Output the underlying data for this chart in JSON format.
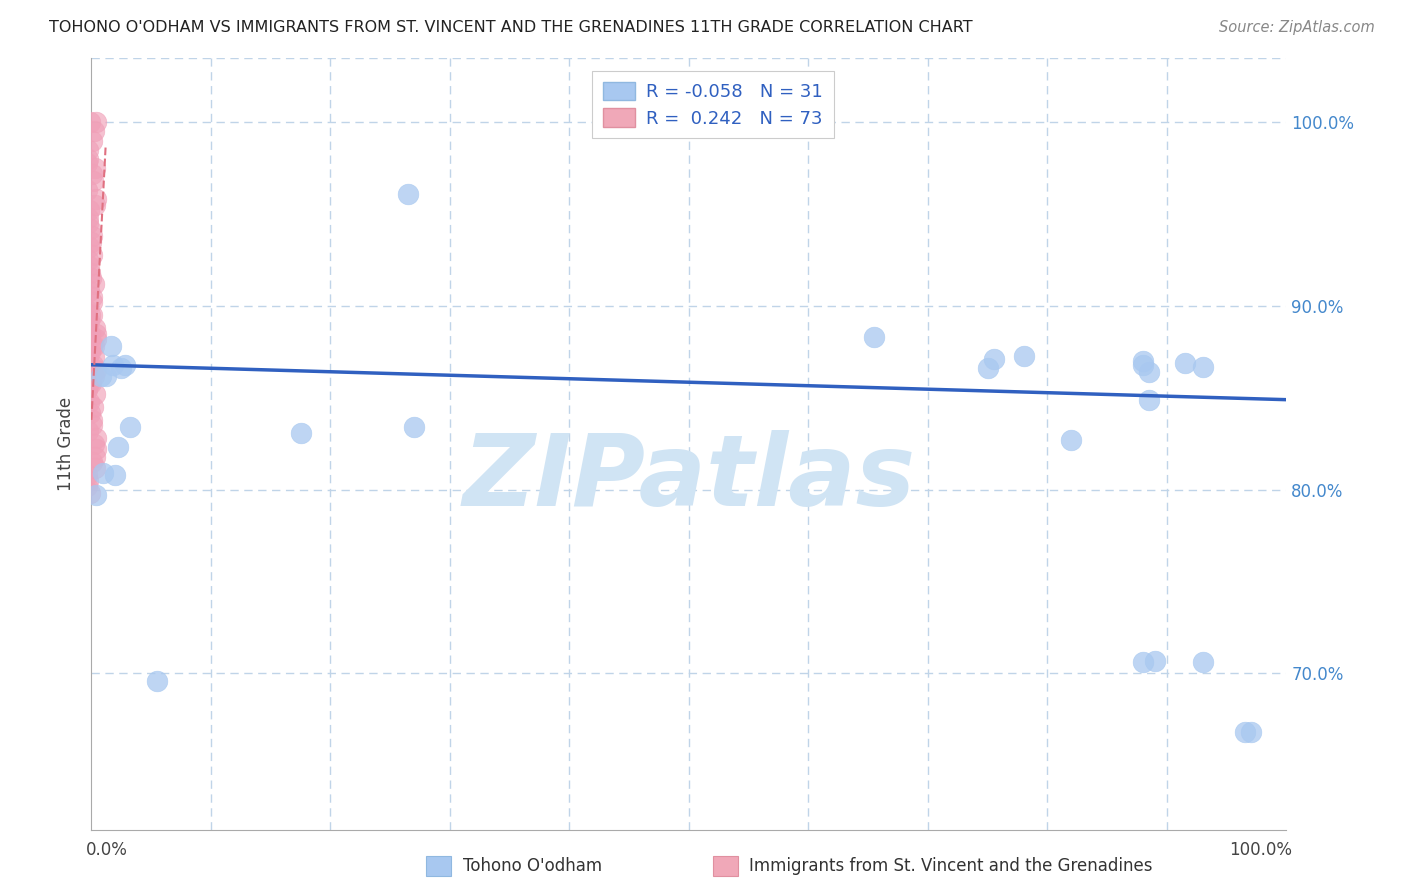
{
  "title": "TOHONO O'ODHAM VS IMMIGRANTS FROM ST. VINCENT AND THE GRENADINES 11TH GRADE CORRELATION CHART",
  "source": "Source: ZipAtlas.com",
  "ylabel": "11th Grade",
  "xlim": [
    0.0,
    1.0
  ],
  "ylim": [
    0.615,
    1.035
  ],
  "yticks": [
    0.7,
    0.8,
    0.9,
    1.0
  ],
  "ytick_labels": [
    "70.0%",
    "80.0%",
    "90.0%",
    "100.0%"
  ],
  "xtick_positions": [
    0.0,
    0.1,
    0.2,
    0.3,
    0.4,
    0.5,
    0.6,
    0.7,
    0.8,
    0.9,
    1.0
  ],
  "watermark": "ZIPatlas",
  "blue_R": "-0.058",
  "blue_N": "31",
  "pink_R": "0.242",
  "pink_N": "73",
  "blue_scatter_x": [
    0.004,
    0.008,
    0.01,
    0.012,
    0.016,
    0.018,
    0.02,
    0.022,
    0.025,
    0.028,
    0.032,
    0.055,
    0.175,
    0.265,
    0.27,
    0.75,
    0.655,
    0.88,
    0.885,
    0.89,
    0.915,
    0.93,
    0.965,
    0.885,
    0.88,
    0.755,
    0.78,
    0.82,
    0.88,
    0.93,
    0.97
  ],
  "blue_scatter_y": [
    0.797,
    0.862,
    0.809,
    0.862,
    0.878,
    0.868,
    0.808,
    0.823,
    0.866,
    0.868,
    0.834,
    0.696,
    0.831,
    0.961,
    0.834,
    0.866,
    0.883,
    0.868,
    0.864,
    0.707,
    0.869,
    0.867,
    0.668,
    0.849,
    0.87,
    0.871,
    0.873,
    0.827,
    0.706,
    0.706,
    0.668
  ],
  "pink_scatter_x": [
    0.0,
    0.0,
    0.0,
    0.0,
    0.0,
    0.0,
    0.0,
    0.0,
    0.0,
    0.0,
    0.0,
    0.0,
    0.0,
    0.0,
    0.0,
    0.0,
    0.0,
    0.0,
    0.0,
    0.0,
    0.0,
    0.0,
    0.0,
    0.0,
    0.0,
    0.0,
    0.0,
    0.0,
    0.0,
    0.0,
    0.0,
    0.0,
    0.0,
    0.0,
    0.0,
    0.0,
    0.0,
    0.0,
    0.0,
    0.0,
    0.0,
    0.0,
    0.0,
    0.0,
    0.0,
    0.0,
    0.0,
    0.0,
    0.0,
    0.0,
    0.0,
    0.0,
    0.0,
    0.0,
    0.0,
    0.0,
    0.0,
    0.0,
    0.0,
    0.0,
    0.0,
    0.0,
    0.0,
    0.0,
    0.0,
    0.0,
    0.0,
    0.0,
    0.0,
    0.0,
    0.0,
    0.0,
    0.0
  ],
  "pink_scatter_y": [
    1.0,
    1.0,
    0.995,
    0.99,
    0.985,
    0.98,
    0.978,
    0.975,
    0.972,
    0.968,
    0.963,
    0.958,
    0.955,
    0.952,
    0.948,
    0.945,
    0.942,
    0.938,
    0.935,
    0.932,
    0.928,
    0.925,
    0.922,
    0.918,
    0.915,
    0.912,
    0.908,
    0.905,
    0.902,
    0.898,
    0.895,
    0.892,
    0.888,
    0.885,
    0.882,
    0.878,
    0.875,
    0.872,
    0.868,
    0.865,
    0.862,
    0.858,
    0.855,
    0.852,
    0.848,
    0.845,
    0.842,
    0.838,
    0.835,
    0.832,
    0.828,
    0.825,
    0.822,
    0.818,
    0.815,
    0.812,
    0.808,
    0.805,
    0.802,
    0.798,
    0.895,
    0.892,
    0.888,
    0.885,
    0.882,
    0.878,
    0.875,
    0.872,
    0.868,
    0.865,
    0.862,
    0.858,
    0.855
  ],
  "blue_line_x0": 0.0,
  "blue_line_x1": 1.0,
  "blue_line_y0": 0.868,
  "blue_line_y1": 0.849,
  "pink_line_x0": 0.0,
  "pink_line_x1": 0.012,
  "pink_line_y0": 0.838,
  "pink_line_y1": 0.988,
  "blue_scatter_color": "#a8c8f0",
  "blue_scatter_edge": "#a8c8f0",
  "blue_line_color": "#3060c0",
  "pink_scatter_color": "#f0a0b8",
  "pink_scatter_edge": "#f0a0b8",
  "pink_line_color": "#e07080",
  "legend_blue_fill": "#a8c8f0",
  "legend_blue_edge": "#90b8e0",
  "legend_pink_fill": "#f0a8b8",
  "legend_pink_edge": "#e090a0",
  "grid_color": "#c0d4e8",
  "bg_color": "#ffffff",
  "title_color": "#222222",
  "source_color": "#888888",
  "ylabel_color": "#444444",
  "right_tick_color": "#4488cc",
  "watermark_color": "#d0e4f4"
}
